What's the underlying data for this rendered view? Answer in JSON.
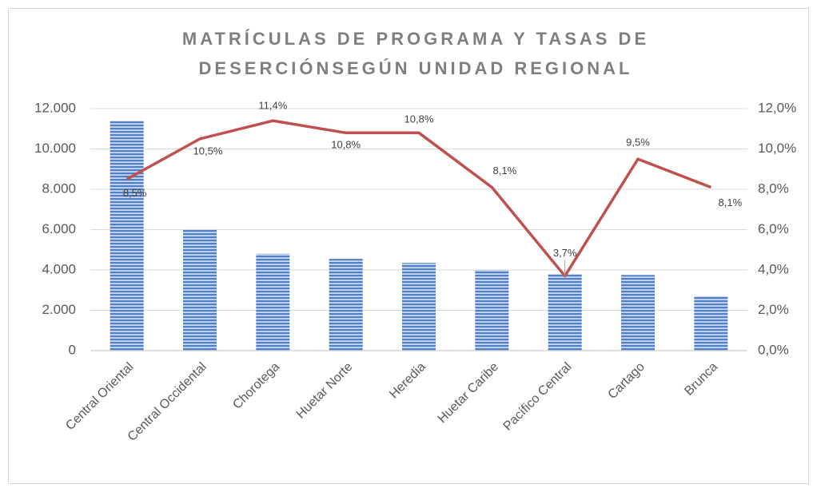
{
  "chart_data": {
    "type": "bar-line",
    "title": [
      "MATRÍCULAS DE PROGRAMA Y TASAS DE",
      "DESERCIÓNSEGÚN UNIDAD REGIONAL"
    ],
    "categories": [
      "Central Oriental",
      "Central Occidental",
      "Chorotega",
      "Huetar Norte",
      "Heredia",
      "Huetar Caribe",
      "Pacífico Central",
      "Cartago",
      "Brunca"
    ],
    "series": [
      {
        "type": "bar",
        "color": "#4f7fc4",
        "values": [
          11400,
          6000,
          4800,
          4550,
          4350,
          4000,
          3800,
          3750,
          2700
        ]
      },
      {
        "type": "line",
        "axis": "y2",
        "color": "#c0504d",
        "values": [
          8.5,
          10.5,
          11.4,
          10.8,
          10.8,
          8.1,
          3.7,
          9.5,
          8.1
        ],
        "value_labels": [
          "8,5%",
          "10,5%",
          "11,4%",
          "10,8%",
          "10,8%",
          "8,1%",
          "3,7%",
          "9,5%",
          "8,1%"
        ]
      }
    ],
    "ylim": [
      0,
      12000
    ],
    "yticks": [
      0,
      {
        "value": 2000,
        "label": "2.000"
      },
      {
        "value": 4000,
        "label": "4.000"
      },
      {
        "value": 6000,
        "label": "6.000"
      },
      {
        "value": 8000,
        "label": "8.000"
      },
      {
        "value": 10000,
        "label": "10.000"
      },
      {
        "value": 12000,
        "label": "12.000"
      }
    ],
    "y2lim": [
      0,
      12
    ],
    "y2ticks": [
      {
        "value": 0,
        "label": "0,0%"
      },
      {
        "value": 2,
        "label": "2,0%"
      },
      {
        "value": 4,
        "label": "4,0%"
      },
      {
        "value": 6,
        "label": "6,0%"
      },
      {
        "value": 8,
        "label": "8,0%"
      },
      {
        "value": 10,
        "label": "10,0%"
      },
      {
        "value": 12,
        "label": "12,0%"
      }
    ],
    "grid": true
  }
}
